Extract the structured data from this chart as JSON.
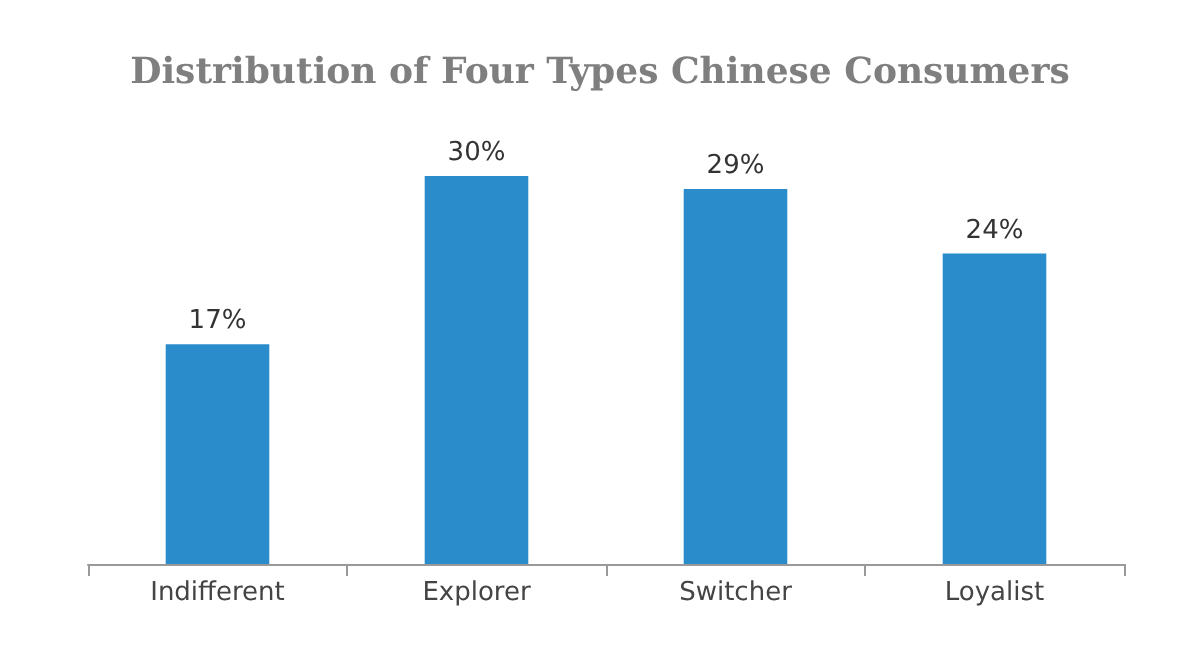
{
  "chart_data": {
    "type": "bar",
    "title": "Distribution of Four Types Chinese Consumers",
    "categories": [
      "Indifferent",
      "Explorer",
      "Switcher",
      "Loyalist"
    ],
    "values": [
      17,
      30,
      29,
      24
    ],
    "value_labels": [
      "17%",
      "30%",
      "29%",
      "24%"
    ],
    "color": "#2b8ccb",
    "tick_labels": "x"
  }
}
